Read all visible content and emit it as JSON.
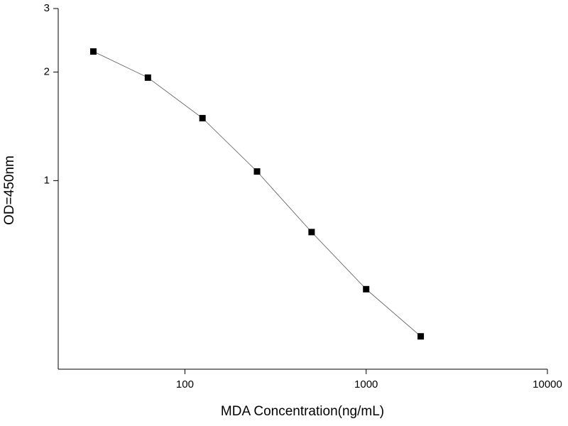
{
  "chart_data": {
    "type": "line",
    "x_label": "MDA Concentration(ng/mL)",
    "y_label": "OD=450nm",
    "x": [
      31.25,
      62.5,
      125,
      250,
      500,
      1000,
      2000
    ],
    "series": [
      {
        "name": "OD",
        "color": "#000000",
        "values": [
          2.28,
          1.93,
          1.49,
          1.06,
          0.72,
          0.5,
          0.37
        ]
      }
    ],
    "xlim": [
      20,
      10000
    ],
    "xticks": [
      100,
      1000,
      10000
    ],
    "xscale": "log",
    "ylim": [
      0.3,
      3
    ],
    "yticks": [
      1,
      2,
      3
    ],
    "yscale": "log",
    "marker": "square"
  }
}
